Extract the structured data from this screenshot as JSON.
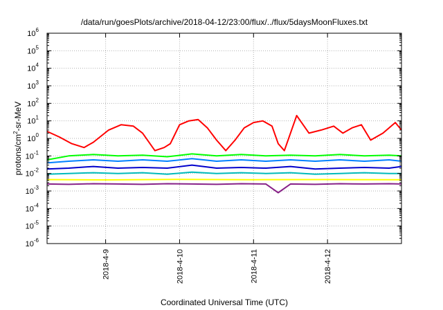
{
  "chart_data": {
    "type": "line",
    "title": "/data/run/goesPlots/archive/2018-04-12/23:00/flux/../flux/5daysMoonFluxes.txt",
    "xlabel": "Coordinated Universal Time (UTC)",
    "ylabel": "protons/cm2-sr-MeV",
    "yscale": "log",
    "ylim": [
      1e-06,
      1000000.0
    ],
    "xlim": [
      "2018-04-08T05:00",
      "2018-04-13T00:00"
    ],
    "y_ticks": [
      {
        "base": "10",
        "exp": "-6"
      },
      {
        "base": "10",
        "exp": "-5"
      },
      {
        "base": "10",
        "exp": "-4"
      },
      {
        "base": "10",
        "exp": "-3"
      },
      {
        "base": "10",
        "exp": "-2"
      },
      {
        "base": "10",
        "exp": "-1"
      },
      {
        "base": "10",
        "exp": "0"
      },
      {
        "base": "10",
        "exp": "1"
      },
      {
        "base": "10",
        "exp": "2"
      },
      {
        "base": "10",
        "exp": "3"
      },
      {
        "base": "10",
        "exp": "4"
      },
      {
        "base": "10",
        "exp": "5"
      },
      {
        "base": "10",
        "exp": "6"
      }
    ],
    "x_ticks": [
      "2018-4-9",
      "2018-4-10",
      "2018-4-11",
      "2018-4-12"
    ],
    "grid": true,
    "legend": "none",
    "series": [
      {
        "color": "#ff0000",
        "x": [
          "2018-04-08T05:00",
          "2018-04-08T09:00",
          "2018-04-08T13:00",
          "2018-04-08T17:00",
          "2018-04-08T20:00",
          "2018-04-09T01:00",
          "2018-04-09T05:00",
          "2018-04-09T09:00",
          "2018-04-09T12:00",
          "2018-04-09T16:00",
          "2018-04-09T19:00",
          "2018-04-09T21:00",
          "2018-04-10T00:00",
          "2018-04-10T03:00",
          "2018-04-10T06:00",
          "2018-04-10T09:00",
          "2018-04-10T12:00",
          "2018-04-10T15:00",
          "2018-04-10T18:00",
          "2018-04-10T21:00",
          "2018-04-11T00:00",
          "2018-04-11T03:00",
          "2018-04-11T06:00",
          "2018-04-11T08:00",
          "2018-04-11T10:00",
          "2018-04-11T14:00",
          "2018-04-11T18:00",
          "2018-04-11T22:00",
          "2018-04-12T02:00",
          "2018-04-12T05:00",
          "2018-04-12T08:00",
          "2018-04-12T11:00",
          "2018-04-12T14:00",
          "2018-04-12T18:00",
          "2018-04-12T22:00",
          "2018-04-13T00:00"
        ],
        "y": [
          2.5,
          1.2,
          0.5,
          0.3,
          0.6,
          3,
          6,
          5,
          2,
          0.2,
          0.3,
          0.5,
          6,
          10,
          12,
          4,
          0.8,
          0.2,
          0.8,
          4,
          8,
          10,
          5,
          0.5,
          0.2,
          20,
          2,
          3,
          5,
          2,
          4,
          6,
          0.8,
          2,
          8,
          3
        ]
      },
      {
        "color": "#00ff00",
        "x": [
          "2018-04-08T05:00",
          "2018-04-08T12:00",
          "2018-04-08T20:00",
          "2018-04-09T04:00",
          "2018-04-09T12:00",
          "2018-04-09T20:00",
          "2018-04-10T04:00",
          "2018-04-10T12:00",
          "2018-04-10T20:00",
          "2018-04-11T04:00",
          "2018-04-11T12:00",
          "2018-04-11T20:00",
          "2018-04-12T04:00",
          "2018-04-12T12:00",
          "2018-04-12T20:00",
          "2018-04-13T00:00"
        ],
        "y": [
          0.06,
          0.1,
          0.12,
          0.1,
          0.11,
          0.09,
          0.13,
          0.1,
          0.12,
          0.1,
          0.11,
          0.1,
          0.12,
          0.1,
          0.11,
          0.1
        ]
      },
      {
        "color": "#0080ff",
        "x": [
          "2018-04-08T05:00",
          "2018-04-08T12:00",
          "2018-04-08T20:00",
          "2018-04-09T04:00",
          "2018-04-09T12:00",
          "2018-04-09T20:00",
          "2018-04-10T04:00",
          "2018-04-10T12:00",
          "2018-04-10T20:00",
          "2018-04-11T04:00",
          "2018-04-11T12:00",
          "2018-04-11T20:00",
          "2018-04-12T04:00",
          "2018-04-12T12:00",
          "2018-04-12T20:00",
          "2018-04-13T00:00"
        ],
        "y": [
          0.04,
          0.05,
          0.06,
          0.05,
          0.06,
          0.05,
          0.07,
          0.05,
          0.06,
          0.05,
          0.06,
          0.05,
          0.06,
          0.05,
          0.06,
          0.05
        ]
      },
      {
        "color": "#0000cc",
        "x": [
          "2018-04-08T05:00",
          "2018-04-08T12:00",
          "2018-04-08T20:00",
          "2018-04-09T04:00",
          "2018-04-09T12:00",
          "2018-04-09T20:00",
          "2018-04-10T04:00",
          "2018-04-10T12:00",
          "2018-04-10T20:00",
          "2018-04-11T04:00",
          "2018-04-11T12:00",
          "2018-04-11T20:00",
          "2018-04-12T04:00",
          "2018-04-12T12:00",
          "2018-04-12T20:00",
          "2018-04-13T00:00"
        ],
        "y": [
          0.018,
          0.02,
          0.025,
          0.02,
          0.022,
          0.02,
          0.03,
          0.02,
          0.022,
          0.02,
          0.025,
          0.018,
          0.02,
          0.022,
          0.02,
          0.025
        ]
      },
      {
        "color": "#00bbbb",
        "x": [
          "2018-04-08T05:00",
          "2018-04-08T12:00",
          "2018-04-08T20:00",
          "2018-04-09T04:00",
          "2018-04-09T12:00",
          "2018-04-09T20:00",
          "2018-04-10T04:00",
          "2018-04-10T12:00",
          "2018-04-10T20:00",
          "2018-04-11T04:00",
          "2018-04-11T12:00",
          "2018-04-11T20:00",
          "2018-04-12T04:00",
          "2018-04-12T12:00",
          "2018-04-12T20:00",
          "2018-04-13T00:00"
        ],
        "y": [
          0.009,
          0.01,
          0.011,
          0.01,
          0.011,
          0.009,
          0.012,
          0.01,
          0.011,
          0.01,
          0.011,
          0.009,
          0.01,
          0.011,
          0.01,
          0.01
        ]
      },
      {
        "color": "#ffff00",
        "x": [
          "2018-04-08T05:00",
          "2018-04-09T00:00",
          "2018-04-10T00:00",
          "2018-04-11T00:00",
          "2018-04-12T00:00",
          "2018-04-13T00:00"
        ],
        "y": [
          0.0045,
          0.0043,
          0.0046,
          0.0044,
          0.0045,
          0.0044
        ]
      },
      {
        "color": "#882288",
        "x": [
          "2018-04-08T05:00",
          "2018-04-08T12:00",
          "2018-04-08T20:00",
          "2018-04-09T04:00",
          "2018-04-09T12:00",
          "2018-04-09T20:00",
          "2018-04-10T04:00",
          "2018-04-10T12:00",
          "2018-04-10T20:00",
          "2018-04-11T04:00",
          "2018-04-11T08:00",
          "2018-04-11T12:00",
          "2018-04-11T20:00",
          "2018-04-12T04:00",
          "2018-04-12T12:00",
          "2018-04-12T20:00",
          "2018-04-13T00:00"
        ],
        "y": [
          0.0025,
          0.0024,
          0.0026,
          0.0025,
          0.0024,
          0.0026,
          0.0025,
          0.0024,
          0.0026,
          0.0025,
          0.0008,
          0.0025,
          0.0024,
          0.0026,
          0.0025,
          0.0026,
          0.0025
        ]
      }
    ]
  }
}
